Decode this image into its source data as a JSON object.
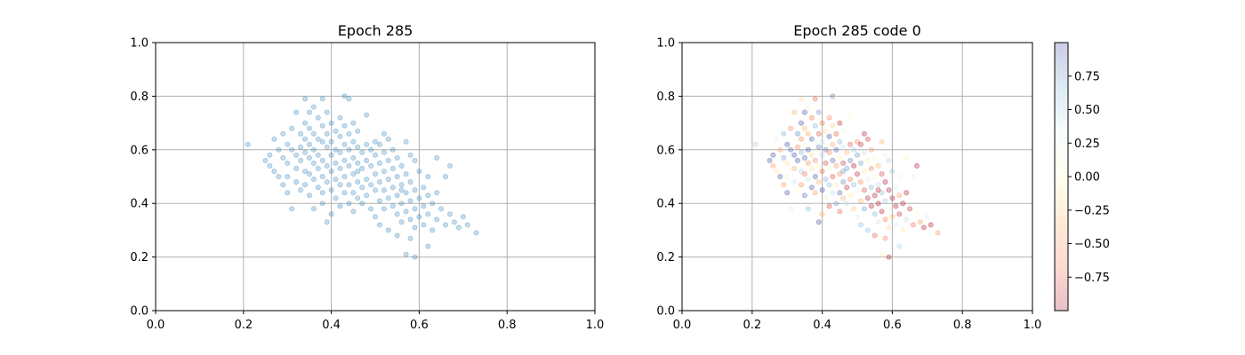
{
  "chart_data": [
    {
      "type": "scatter",
      "title": "Epoch 285",
      "xlabel": "",
      "ylabel": "",
      "xlim": [
        0.0,
        1.0
      ],
      "ylim": [
        0.0,
        1.0
      ],
      "xticks": [
        "0.0",
        "0.2",
        "0.4",
        "0.6",
        "0.8",
        "1.0"
      ],
      "yticks": [
        "0.0",
        "0.2",
        "0.4",
        "0.6",
        "0.8",
        "1.0"
      ],
      "grid": true,
      "point_color": "#1f77b4",
      "point_alpha": 0.25,
      "points": [
        [
          0.21,
          0.62
        ],
        [
          0.25,
          0.56
        ],
        [
          0.26,
          0.54
        ],
        [
          0.26,
          0.58
        ],
        [
          0.27,
          0.64
        ],
        [
          0.27,
          0.52
        ],
        [
          0.28,
          0.5
        ],
        [
          0.28,
          0.6
        ],
        [
          0.29,
          0.66
        ],
        [
          0.29,
          0.57
        ],
        [
          0.29,
          0.47
        ],
        [
          0.3,
          0.62
        ],
        [
          0.3,
          0.55
        ],
        [
          0.3,
          0.5
        ],
        [
          0.3,
          0.44
        ],
        [
          0.31,
          0.68
        ],
        [
          0.31,
          0.6
        ],
        [
          0.31,
          0.38
        ],
        [
          0.32,
          0.74
        ],
        [
          0.32,
          0.58
        ],
        [
          0.32,
          0.53
        ],
        [
          0.32,
          0.48
        ],
        [
          0.33,
          0.66
        ],
        [
          0.33,
          0.61
        ],
        [
          0.33,
          0.56
        ],
        [
          0.33,
          0.45
        ],
        [
          0.34,
          0.79
        ],
        [
          0.34,
          0.7
        ],
        [
          0.34,
          0.64
        ],
        [
          0.34,
          0.59
        ],
        [
          0.34,
          0.52
        ],
        [
          0.34,
          0.47
        ],
        [
          0.35,
          0.74
        ],
        [
          0.35,
          0.68
        ],
        [
          0.35,
          0.62
        ],
        [
          0.35,
          0.57
        ],
        [
          0.35,
          0.51
        ],
        [
          0.35,
          0.43
        ],
        [
          0.36,
          0.76
        ],
        [
          0.36,
          0.66
        ],
        [
          0.36,
          0.6
        ],
        [
          0.36,
          0.55
        ],
        [
          0.36,
          0.49
        ],
        [
          0.36,
          0.38
        ],
        [
          0.37,
          0.72
        ],
        [
          0.37,
          0.64
        ],
        [
          0.37,
          0.58
        ],
        [
          0.37,
          0.53
        ],
        [
          0.37,
          0.46
        ],
        [
          0.38,
          0.79
        ],
        [
          0.38,
          0.69
        ],
        [
          0.38,
          0.63
        ],
        [
          0.38,
          0.56
        ],
        [
          0.38,
          0.5
        ],
        [
          0.38,
          0.44
        ],
        [
          0.38,
          0.4
        ],
        [
          0.39,
          0.74
        ],
        [
          0.39,
          0.66
        ],
        [
          0.39,
          0.61
        ],
        [
          0.39,
          0.54
        ],
        [
          0.39,
          0.48
        ],
        [
          0.39,
          0.33
        ],
        [
          0.4,
          0.7
        ],
        [
          0.4,
          0.63
        ],
        [
          0.4,
          0.58
        ],
        [
          0.4,
          0.52
        ],
        [
          0.4,
          0.45
        ],
        [
          0.4,
          0.36
        ],
        [
          0.41,
          0.67
        ],
        [
          0.41,
          0.6
        ],
        [
          0.41,
          0.55
        ],
        [
          0.41,
          0.49
        ],
        [
          0.41,
          0.42
        ],
        [
          0.42,
          0.72
        ],
        [
          0.42,
          0.65
        ],
        [
          0.42,
          0.59
        ],
        [
          0.42,
          0.53
        ],
        [
          0.42,
          0.47
        ],
        [
          0.42,
          0.39
        ],
        [
          0.43,
          0.8
        ],
        [
          0.43,
          0.69
        ],
        [
          0.43,
          0.62
        ],
        [
          0.43,
          0.56
        ],
        [
          0.43,
          0.5
        ],
        [
          0.43,
          0.44
        ],
        [
          0.44,
          0.79
        ],
        [
          0.44,
          0.66
        ],
        [
          0.44,
          0.6
        ],
        [
          0.44,
          0.54
        ],
        [
          0.44,
          0.47
        ],
        [
          0.44,
          0.4
        ],
        [
          0.45,
          0.7
        ],
        [
          0.45,
          0.63
        ],
        [
          0.45,
          0.57
        ],
        [
          0.45,
          0.51
        ],
        [
          0.45,
          0.44
        ],
        [
          0.45,
          0.37
        ],
        [
          0.46,
          0.67
        ],
        [
          0.46,
          0.61
        ],
        [
          0.46,
          0.55
        ],
        [
          0.46,
          0.48
        ],
        [
          0.46,
          0.42
        ],
        [
          0.47,
          0.59
        ],
        [
          0.47,
          0.53
        ],
        [
          0.47,
          0.46
        ],
        [
          0.47,
          0.4
        ],
        [
          0.48,
          0.73
        ],
        [
          0.48,
          0.62
        ],
        [
          0.48,
          0.56
        ],
        [
          0.48,
          0.49
        ],
        [
          0.48,
          0.43
        ],
        [
          0.49,
          0.6
        ],
        [
          0.49,
          0.54
        ],
        [
          0.49,
          0.47
        ],
        [
          0.49,
          0.38
        ],
        [
          0.5,
          0.63
        ],
        [
          0.5,
          0.58
        ],
        [
          0.5,
          0.51
        ],
        [
          0.5,
          0.45
        ],
        [
          0.5,
          0.35
        ],
        [
          0.51,
          0.62
        ],
        [
          0.51,
          0.55
        ],
        [
          0.51,
          0.48
        ],
        [
          0.51,
          0.41
        ],
        [
          0.51,
          0.32
        ],
        [
          0.52,
          0.66
        ],
        [
          0.52,
          0.59
        ],
        [
          0.52,
          0.52
        ],
        [
          0.52,
          0.45
        ],
        [
          0.52,
          0.38
        ],
        [
          0.53,
          0.64
        ],
        [
          0.53,
          0.56
        ],
        [
          0.53,
          0.49
        ],
        [
          0.53,
          0.42
        ],
        [
          0.53,
          0.3
        ],
        [
          0.54,
          0.6
        ],
        [
          0.54,
          0.53
        ],
        [
          0.54,
          0.46
        ],
        [
          0.54,
          0.39
        ],
        [
          0.55,
          0.57
        ],
        [
          0.55,
          0.5
        ],
        [
          0.55,
          0.43
        ],
        [
          0.55,
          0.36
        ],
        [
          0.55,
          0.28
        ],
        [
          0.56,
          0.54
        ],
        [
          0.56,
          0.47
        ],
        [
          0.56,
          0.4
        ],
        [
          0.56,
          0.33
        ],
        [
          0.57,
          0.63
        ],
        [
          0.57,
          0.51
        ],
        [
          0.57,
          0.44
        ],
        [
          0.57,
          0.37
        ],
        [
          0.57,
          0.21
        ],
        [
          0.58,
          0.58
        ],
        [
          0.58,
          0.48
        ],
        [
          0.58,
          0.41
        ],
        [
          0.58,
          0.34
        ],
        [
          0.58,
          0.27
        ],
        [
          0.59,
          0.56
        ],
        [
          0.59,
          0.45
        ],
        [
          0.59,
          0.38
        ],
        [
          0.59,
          0.31
        ],
        [
          0.59,
          0.2
        ],
        [
          0.6,
          0.52
        ],
        [
          0.6,
          0.42
        ],
        [
          0.6,
          0.35
        ],
        [
          0.61,
          0.46
        ],
        [
          0.61,
          0.39
        ],
        [
          0.61,
          0.32
        ],
        [
          0.62,
          0.43
        ],
        [
          0.62,
          0.36
        ],
        [
          0.62,
          0.24
        ],
        [
          0.63,
          0.4
        ],
        [
          0.63,
          0.3
        ],
        [
          0.64,
          0.57
        ],
        [
          0.64,
          0.44
        ],
        [
          0.64,
          0.34
        ],
        [
          0.65,
          0.38
        ],
        [
          0.66,
          0.32
        ],
        [
          0.66,
          0.5
        ],
        [
          0.67,
          0.54
        ],
        [
          0.67,
          0.36
        ],
        [
          0.68,
          0.33
        ],
        [
          0.69,
          0.31
        ],
        [
          0.7,
          0.35
        ],
        [
          0.71,
          0.32
        ],
        [
          0.73,
          0.29
        ],
        [
          0.62,
          0.5
        ],
        [
          0.56,
          0.45
        ],
        [
          0.46,
          0.52
        ]
      ]
    },
    {
      "type": "scatter",
      "title": "Epoch 285 code 0",
      "xlabel": "",
      "ylabel": "",
      "xlim": [
        0.0,
        1.0
      ],
      "ylim": [
        0.0,
        1.0
      ],
      "xticks": [
        "0.0",
        "0.2",
        "0.4",
        "0.6",
        "0.8",
        "1.0"
      ],
      "yticks": [
        "0.0",
        "0.2",
        "0.4",
        "0.6",
        "0.8",
        "1.0"
      ],
      "grid": true,
      "point_alpha": 0.3,
      "colormap": "RdYlBu",
      "colorbar": {
        "range": [
          -1.0,
          1.0
        ],
        "ticks": [
          0.75,
          0.5,
          0.25,
          0.0,
          -0.25,
          -0.5,
          -0.75
        ],
        "tick_labels": [
          "0.75",
          "0.50",
          "0.25",
          "0.00",
          "−0.25",
          "−0.50",
          "−0.75"
        ],
        "colors": [
          "#313695",
          "#74add1",
          "#e0f3f8",
          "#ffffbf",
          "#fdae61",
          "#f46d43",
          "#a50026"
        ]
      }
    }
  ]
}
